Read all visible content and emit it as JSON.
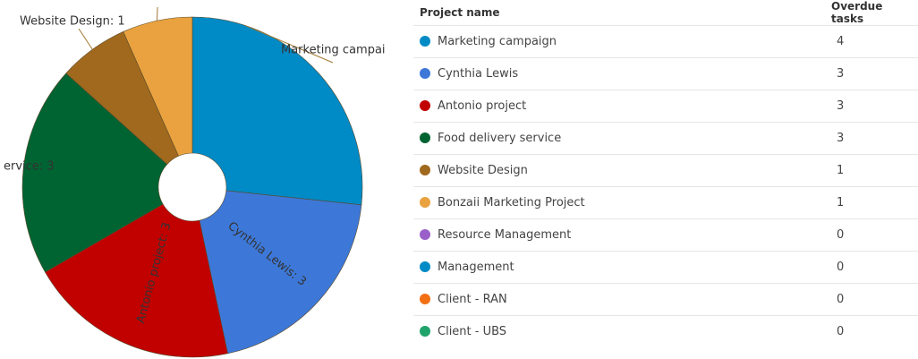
{
  "chart_data": {
    "type": "pie",
    "donut": true,
    "slices": [
      {
        "label": "Marketing campaign",
        "value": 4,
        "color": "#008ac6"
      },
      {
        "label": "Cynthia Lewis",
        "value": 3,
        "color": "#3d78d8"
      },
      {
        "label": "Antonio project",
        "value": 3,
        "color": "#c10000"
      },
      {
        "label": "Food delivery service",
        "value": 3,
        "color": "#006432"
      },
      {
        "label": "Website Design",
        "value": 1,
        "color": "#a0691e"
      },
      {
        "label": "Bonzaii Marketing Project",
        "value": 1,
        "color": "#e9a23f"
      }
    ],
    "visible_labels": [
      "Marketing campai",
      "Cynthia Lewis: 3",
      "Antonio project: 3",
      "ervice: 3",
      "Website Design: 1"
    ]
  },
  "table": {
    "headers": {
      "project": "Project name",
      "overdue": "Overdue tasks"
    },
    "rows": [
      {
        "name": "Marketing campaign",
        "value": "4",
        "color": "#008ac6"
      },
      {
        "name": "Cynthia Lewis",
        "value": "3",
        "color": "#3d78d8"
      },
      {
        "name": "Antonio project",
        "value": "3",
        "color": "#c10000"
      },
      {
        "name": "Food delivery service",
        "value": "3",
        "color": "#006432"
      },
      {
        "name": "Website Design",
        "value": "1",
        "color": "#a0691e"
      },
      {
        "name": "Bonzaii Marketing Project",
        "value": "1",
        "color": "#e9a23f"
      },
      {
        "name": "Resource Management",
        "value": "0",
        "color": "#9a5fc9"
      },
      {
        "name": "Management",
        "value": "0",
        "color": "#008ac6"
      },
      {
        "name": "Client - RAN",
        "value": "0",
        "color": "#f26f13"
      },
      {
        "name": "Client - UBS",
        "value": "0",
        "color": "#1fa36a"
      }
    ]
  }
}
